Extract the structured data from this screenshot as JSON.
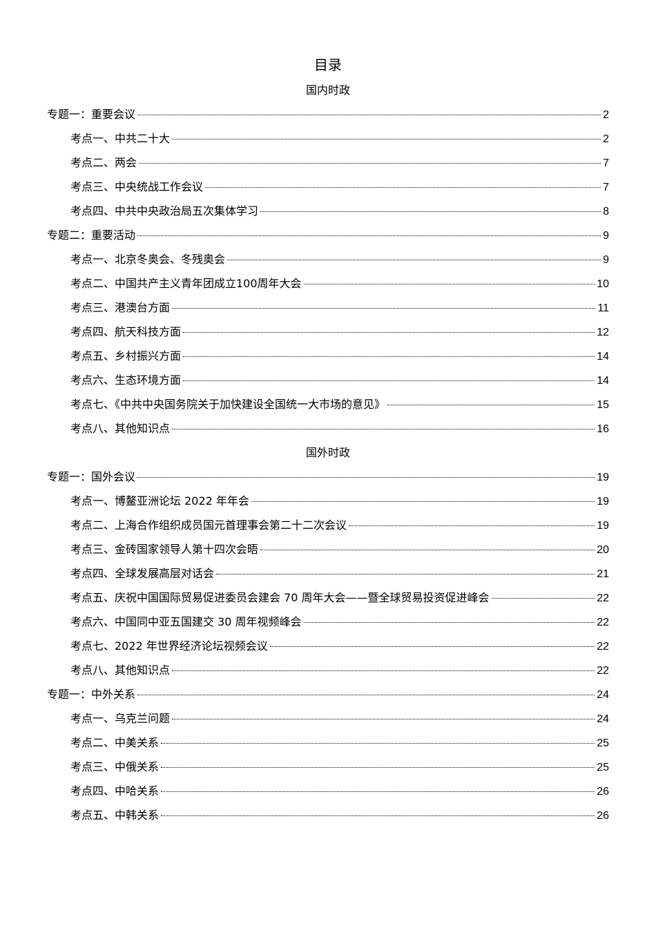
{
  "title": "目录",
  "sections": [
    {
      "heading": "国内时政",
      "entries": [
        {
          "level": 1,
          "label": "专题一：重要会议",
          "page": "2"
        },
        {
          "level": 2,
          "label": "考点一、中共二十大",
          "page": "2"
        },
        {
          "level": 2,
          "label": "考点二、两会",
          "page": "7"
        },
        {
          "level": 2,
          "label": "考点三、中央统战工作会议",
          "page": "7"
        },
        {
          "level": 2,
          "label": "考点四、中共中央政治局五次集体学习",
          "page": "8"
        },
        {
          "level": 1,
          "label": "专题二：重要活动",
          "page": "9"
        },
        {
          "level": 2,
          "label": "考点一、北京冬奥会、冬残奥会",
          "page": "9"
        },
        {
          "level": 2,
          "label": "考点二、中国共产主义青年团成立100周年大会",
          "page": "10"
        },
        {
          "level": 2,
          "label": "考点三、港澳台方面",
          "page": "11"
        },
        {
          "level": 2,
          "label": "考点四、航天科技方面",
          "page": "12"
        },
        {
          "level": 2,
          "label": "考点五、乡村振兴方面",
          "page": "14"
        },
        {
          "level": 2,
          "label": "考点六、生态环境方面",
          "page": "14"
        },
        {
          "level": 2,
          "label": "考点七、《中共中央国务院关于加快建设全国统一大市场的意见》",
          "page": "15"
        },
        {
          "level": 2,
          "label": "考点八、其他知识点",
          "page": "16"
        }
      ]
    },
    {
      "heading": "国外时政",
      "entries": [
        {
          "level": 1,
          "label": "专题一：国外会议",
          "page": "19"
        },
        {
          "level": 2,
          "label": "考点一、博鳌亚洲论坛 2022 年年会",
          "page": "19"
        },
        {
          "level": 2,
          "label": "考点二、上海合作组织成员国元首理事会第二十二次会议",
          "page": "19"
        },
        {
          "level": 2,
          "label": "考点三、金砖国家领导人第十四次会晤",
          "page": "20"
        },
        {
          "level": 2,
          "label": "考点四、全球发展高层对话会",
          "page": "21"
        },
        {
          "level": 2,
          "label": "考点五、庆祝中国国际贸易促进委员会建会 70 周年大会——暨全球贸易投资促进峰会",
          "page": "22"
        },
        {
          "level": 2,
          "label": "考点六、中国同中亚五国建交 30 周年视频峰会",
          "page": "22"
        },
        {
          "level": 2,
          "label": "考点七、2022 年世界经济论坛视频会议",
          "page": "22"
        },
        {
          "level": 2,
          "label": "考点八、其他知识点",
          "page": "22"
        },
        {
          "level": 1,
          "label": "专题一：中外关系",
          "page": "24"
        },
        {
          "level": 2,
          "label": "考点一、乌克兰问题",
          "page": "24"
        },
        {
          "level": 2,
          "label": "考点二、中美关系",
          "page": "25"
        },
        {
          "level": 2,
          "label": "考点三、中俄关系",
          "page": "25"
        },
        {
          "level": 2,
          "label": "考点四、中哈关系",
          "page": "26"
        },
        {
          "level": 2,
          "label": "考点五、中韩关系",
          "page": "26"
        }
      ]
    }
  ]
}
